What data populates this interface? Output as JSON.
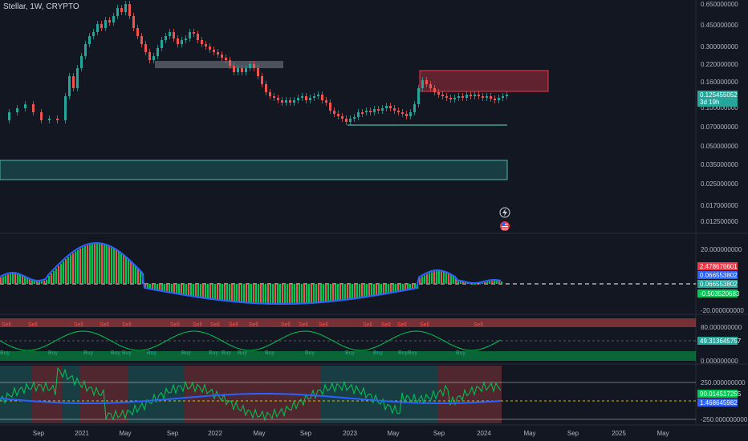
{
  "header": {
    "symbol_line": "Stellar, 1W, CRYPTO"
  },
  "colors": {
    "background": "#131722",
    "up": "#26a69a",
    "down": "#ef5350",
    "accent_green": "#00c853",
    "accent_red": "#f23645",
    "blue_line": "#2962ff"
  },
  "price_axis": {
    "ticks": [
      "0.650000000",
      "0.450000000",
      "0.300000000",
      "0.220000000",
      "0.160000000",
      "0.100000000",
      "0.070000000",
      "0.050000000",
      "0.035000000",
      "0.025000000",
      "0.017000000",
      "0.012500000"
    ],
    "last_price": "0.125455052",
    "countdown": "3d 19h"
  },
  "osc1_axis": {
    "ticks": [
      "20.000000000",
      "-20.000000000"
    ],
    "tags": [
      "2.478676601",
      "0.066553802",
      "0.066553802",
      "-0.503520683"
    ]
  },
  "osc2_axis": {
    "ticks": [
      "80.000000000",
      "0.000000000"
    ],
    "tag": "49.313645757",
    "buy_label": "Buy",
    "sell_label": "Sell"
  },
  "osc3_axis": {
    "ticks": [
      "250.000000000",
      "-250.000000000"
    ],
    "tags": [
      "90.014517255",
      "1.468645982"
    ]
  },
  "time_axis": {
    "labels": [
      "Sep",
      "2021",
      "May",
      "Sep",
      "2022",
      "May",
      "Sep",
      "2023",
      "May",
      "Sep",
      "2024",
      "May",
      "Sep",
      "2025",
      "May"
    ]
  },
  "icons": [
    "lightning-icon",
    "us-flag-icon"
  ]
}
